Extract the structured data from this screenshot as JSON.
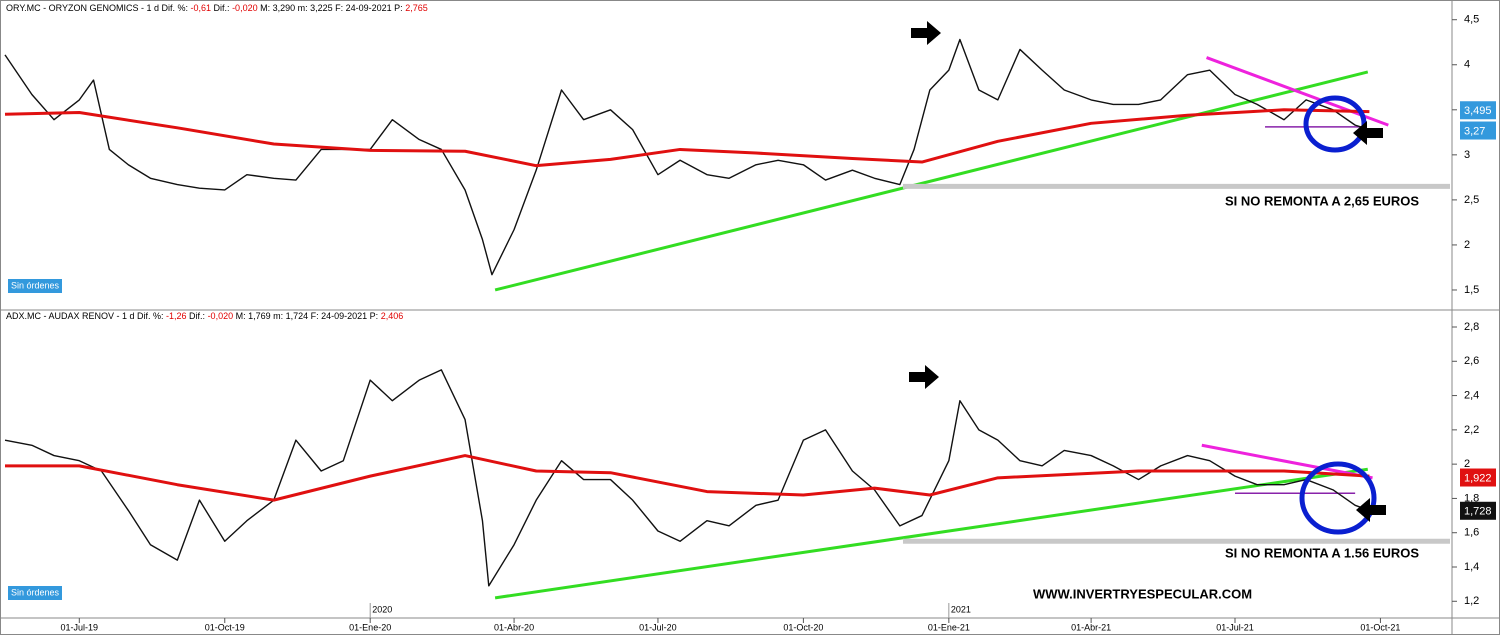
{
  "chart_data": [
    {
      "type": "line",
      "header": [
        {
          "text": "ORY.MC - ORYZON GENOMICS -  1 d  Dif. %: ",
          "color": "#000000"
        },
        {
          "text": "-0,61",
          "color": "#e00000"
        },
        {
          "text": "  Dif.: ",
          "color": "#000000"
        },
        {
          "text": "-0,020",
          "color": "#e00000"
        },
        {
          "text": "  M: 3,290  m: 3,225  F: 24-09-2021  P: ",
          "color": "#000000"
        },
        {
          "text": "2,765",
          "color": "#e00000"
        }
      ],
      "xlim": [
        "2019-05-15",
        "2021-11-14"
      ],
      "ylim": [
        1.3,
        4.63
      ],
      "yticks": [
        {
          "value": 4.5,
          "label": "4,5"
        },
        {
          "value": 4,
          "label": "4"
        },
        {
          "value": 3.5,
          "label": "3,5"
        },
        {
          "value": 3,
          "label": "3"
        },
        {
          "value": 2.5,
          "label": "2,5"
        },
        {
          "value": 2,
          "label": "2"
        },
        {
          "value": 1.5,
          "label": "1,5"
        }
      ],
      "series": [
        {
          "color": "#111111",
          "x": [
            "2019-05-15",
            "2019-06-01",
            "2019-06-15",
            "2019-07-01",
            "2019-07-10",
            "2019-07-20",
            "2019-08-01",
            "2019-08-15",
            "2019-09-01",
            "2019-09-15",
            "2019-10-01",
            "2019-10-15",
            "2019-11-01",
            "2019-11-15",
            "2019-12-01",
            "2019-12-15",
            "2020-01-01",
            "2020-01-15",
            "2020-02-01",
            "2020-02-15",
            "2020-03-01",
            "2020-03-12",
            "2020-03-18",
            "2020-04-01",
            "2020-04-15",
            "2020-05-01",
            "2020-05-15",
            "2020-06-01",
            "2020-06-15",
            "2020-07-01",
            "2020-07-15",
            "2020-08-01",
            "2020-08-15",
            "2020-09-01",
            "2020-09-15",
            "2020-10-01",
            "2020-10-15",
            "2020-11-01",
            "2020-11-15",
            "2020-12-01",
            "2020-12-10",
            "2020-12-20",
            "2021-01-01",
            "2021-01-08",
            "2021-01-20",
            "2021-02-01",
            "2021-02-15",
            "2021-03-01",
            "2021-03-15",
            "2021-04-01",
            "2021-04-15",
            "2021-05-01",
            "2021-05-15",
            "2021-06-01",
            "2021-06-15",
            "2021-07-01",
            "2021-07-15",
            "2021-08-01",
            "2021-08-15",
            "2021-09-01",
            "2021-09-15",
            "2021-09-24"
          ],
          "values": [
            4.11,
            3.67,
            3.39,
            3.61,
            3.83,
            3.06,
            2.89,
            2.74,
            2.67,
            2.63,
            2.61,
            2.78,
            2.74,
            2.72,
            3.06,
            3.06,
            3.06,
            3.39,
            3.17,
            3.06,
            2.61,
            2.06,
            1.67,
            2.17,
            2.83,
            3.72,
            3.39,
            3.5,
            3.28,
            2.78,
            2.94,
            2.78,
            2.74,
            2.89,
            2.94,
            2.89,
            2.72,
            2.83,
            2.74,
            2.67,
            3.06,
            3.72,
            3.94,
            4.28,
            3.72,
            3.61,
            4.17,
            3.94,
            3.72,
            3.61,
            3.56,
            3.56,
            3.61,
            3.89,
            3.94,
            3.67,
            3.56,
            3.39,
            3.61,
            3.5,
            3.33,
            3.28
          ]
        },
        {
          "color": "#e01010",
          "x": [
            "2019-05-15",
            "2019-07-01",
            "2019-09-01",
            "2019-11-01",
            "2020-01-01",
            "2020-03-01",
            "2020-04-15",
            "2020-06-01",
            "2020-07-15",
            "2020-09-01",
            "2020-11-01",
            "2020-12-15",
            "2021-02-01",
            "2021-04-01",
            "2021-06-01",
            "2021-08-01",
            "2021-09-24"
          ],
          "values": [
            3.45,
            3.47,
            3.3,
            3.12,
            3.05,
            3.04,
            2.88,
            2.95,
            3.06,
            3.02,
            2.96,
            2.92,
            3.15,
            3.35,
            3.44,
            3.5,
            3.48
          ]
        }
      ],
      "lines": [
        {
          "color": "#33dd22",
          "x": [
            "2020-03-20",
            "2021-09-23"
          ],
          "values": [
            1.5,
            3.92
          ]
        },
        {
          "color": "#ee22dd",
          "x": [
            "2021-06-13",
            "2021-10-06"
          ],
          "values": [
            4.08,
            3.33
          ]
        },
        {
          "color": "#c8c8c8",
          "x": [
            "2020-12-03",
            "2021-11-14"
          ],
          "values": [
            2.65,
            2.65
          ]
        },
        {
          "color": "#8822aa",
          "x": [
            "2021-07-20",
            "2021-09-20"
          ],
          "values": [
            3.31,
            3.31
          ]
        }
      ],
      "price_labels": [
        {
          "value": 3.495,
          "label": "3,495",
          "color": "#3399dd"
        },
        {
          "value": 3.27,
          "label": "3,27",
          "color": "#3399dd"
        }
      ],
      "annotations": [
        "SI NO REMONTA A 2,65  EUROS",
        "Sin órdenes"
      ]
    },
    {
      "type": "line",
      "header": [
        {
          "text": "ADX.MC - AUDAX RENOV -  1 d  Dif. %: ",
          "color": "#000000"
        },
        {
          "text": "-1,26",
          "color": "#e00000"
        },
        {
          "text": "  Dif.: ",
          "color": "#000000"
        },
        {
          "text": "-0,020",
          "color": "#e00000"
        },
        {
          "text": "  M: 1,769  m: 1,724  F: 24-09-2021  P: ",
          "color": "#000000"
        },
        {
          "text": "2,406",
          "color": "#e00000"
        }
      ],
      "xlim": [
        "2019-05-15",
        "2021-11-14"
      ],
      "xticks": [
        {
          "value": "2019-07-01",
          "label": "01-Jul-19"
        },
        {
          "value": "2019-10-01",
          "label": "01-Oct-19"
        },
        {
          "value": "2020-01-01",
          "label": "01-Ene-20"
        },
        {
          "value": "2020-04-01",
          "label": "01-Abr-20"
        },
        {
          "value": "2020-07-01",
          "label": "01-Jul-20"
        },
        {
          "value": "2020-10-01",
          "label": "01-Oct-20"
        },
        {
          "value": "2021-01-01",
          "label": "01-Ene-21"
        },
        {
          "value": "2021-04-01",
          "label": "01-Abr-21"
        },
        {
          "value": "2021-07-01",
          "label": "01-Jul-21"
        },
        {
          "value": "2021-10-01",
          "label": "01-Oct-21"
        }
      ],
      "year_labels": [
        {
          "value": "2020-01-01",
          "label": "2020"
        },
        {
          "value": "2021-01-01",
          "label": "2021"
        }
      ],
      "ylim": [
        1.12,
        2.87
      ],
      "yticks": [
        {
          "value": 2.8,
          "label": "2,8"
        },
        {
          "value": 2.6,
          "label": "2,6"
        },
        {
          "value": 2.4,
          "label": "2,4"
        },
        {
          "value": 2.2,
          "label": "2,2"
        },
        2,
        {
          "value": 1.8,
          "label": "1,8"
        },
        {
          "value": 1.6,
          "label": "1,6"
        },
        {
          "value": 1.4,
          "label": "1,4"
        },
        {
          "value": 1.2,
          "label": "1,2"
        }
      ],
      "series": [
        {
          "color": "#111111",
          "x": [
            "2019-05-15",
            "2019-06-01",
            "2019-06-15",
            "2019-07-01",
            "2019-07-15",
            "2019-08-01",
            "2019-08-15",
            "2019-09-01",
            "2019-09-15",
            "2019-10-01",
            "2019-10-15",
            "2019-11-01",
            "2019-11-15",
            "2019-12-01",
            "2019-12-15",
            "2020-01-01",
            "2020-01-15",
            "2020-02-01",
            "2020-02-15",
            "2020-03-01",
            "2020-03-12",
            "2020-03-16",
            "2020-04-01",
            "2020-04-15",
            "2020-05-01",
            "2020-05-15",
            "2020-06-01",
            "2020-06-15",
            "2020-07-01",
            "2020-07-15",
            "2020-08-01",
            "2020-08-15",
            "2020-09-01",
            "2020-09-15",
            "2020-10-01",
            "2020-10-15",
            "2020-11-01",
            "2020-11-15",
            "2020-12-01",
            "2020-12-15",
            "2021-01-01",
            "2021-01-08",
            "2021-01-20",
            "2021-02-01",
            "2021-02-15",
            "2021-03-01",
            "2021-03-15",
            "2021-04-01",
            "2021-04-15",
            "2021-05-01",
            "2021-05-15",
            "2021-06-01",
            "2021-06-15",
            "2021-07-01",
            "2021-07-15",
            "2021-08-01",
            "2021-08-15",
            "2021-09-01",
            "2021-09-15",
            "2021-09-24"
          ],
          "values": [
            2.14,
            2.11,
            2.05,
            2.02,
            1.96,
            1.73,
            1.53,
            1.44,
            1.79,
            1.55,
            1.67,
            1.79,
            2.14,
            1.96,
            2.02,
            2.49,
            2.37,
            2.49,
            2.55,
            2.26,
            1.67,
            1.29,
            1.53,
            1.79,
            2.02,
            1.91,
            1.91,
            1.79,
            1.61,
            1.55,
            1.67,
            1.64,
            1.76,
            1.79,
            2.14,
            2.2,
            1.96,
            1.85,
            1.64,
            1.7,
            2.02,
            2.37,
            2.2,
            2.14,
            2.02,
            1.99,
            2.08,
            2.05,
            1.99,
            1.91,
            1.99,
            2.05,
            2.02,
            1.93,
            1.88,
            1.88,
            1.91,
            1.85,
            1.76,
            1.73
          ]
        },
        {
          "color": "#e01010",
          "x": [
            "2019-05-15",
            "2019-07-01",
            "2019-09-01",
            "2019-11-01",
            "2020-01-01",
            "2020-03-01",
            "2020-04-15",
            "2020-06-01",
            "2020-08-01",
            "2020-10-01",
            "2020-11-15",
            "2020-12-20",
            "2021-02-01",
            "2021-05-01",
            "2021-08-01",
            "2021-09-24"
          ],
          "values": [
            1.99,
            1.99,
            1.88,
            1.79,
            1.93,
            2.05,
            1.96,
            1.95,
            1.84,
            1.82,
            1.86,
            1.82,
            1.92,
            1.96,
            1.96,
            1.93
          ]
        }
      ],
      "lines": [
        {
          "color": "#33dd22",
          "x": [
            "2020-03-20",
            "2021-09-23"
          ],
          "values": [
            1.22,
            1.97
          ]
        },
        {
          "color": "#ee22dd",
          "x": [
            "2021-06-10",
            "2021-09-26"
          ],
          "values": [
            2.11,
            1.92
          ]
        },
        {
          "color": "#c8c8c8",
          "x": [
            "2020-12-03",
            "2021-11-14"
          ],
          "values": [
            1.55,
            1.55
          ]
        },
        {
          "color": "#8822aa",
          "x": [
            "2021-07-01",
            "2021-09-15"
          ],
          "values": [
            1.83,
            1.83
          ]
        }
      ],
      "price_labels": [
        {
          "value": 1.922,
          "label": "1,922",
          "color": "#e01010"
        },
        {
          "value": 1.728,
          "label": "1,728",
          "color": "#111111"
        }
      ],
      "annotations": [
        "SI NO REMONTA A 1.56 EUROS",
        "Sin órdenes",
        "WWW.INVERTRYESPECULAR.COM"
      ]
    }
  ]
}
